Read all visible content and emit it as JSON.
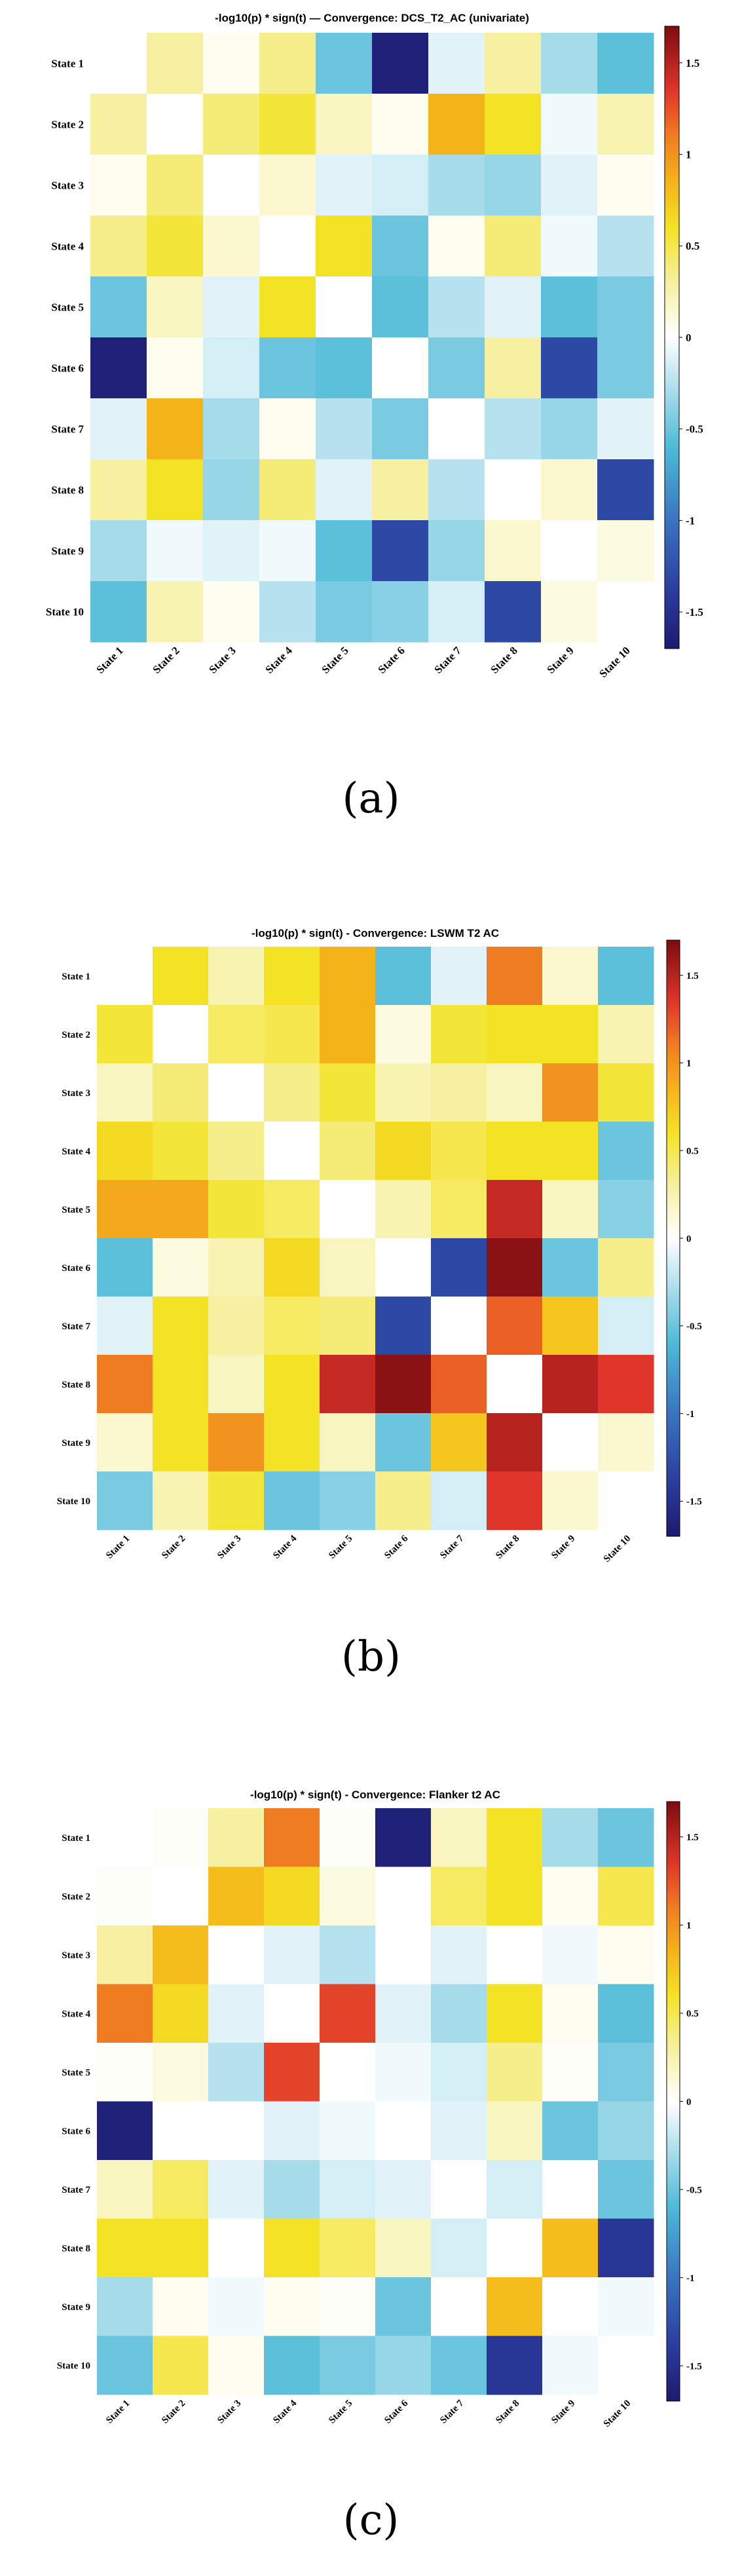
{
  "figure": {
    "captions": [
      "(a)",
      "(b)",
      "(c)"
    ]
  },
  "colormap": {
    "stops": [
      [
        -1.7,
        "#1d1a70"
      ],
      [
        -1.4,
        "#2a3b9c"
      ],
      [
        -1.0,
        "#3a74c0"
      ],
      [
        -0.6,
        "#4dbad8"
      ],
      [
        -0.3,
        "#a6dcea"
      ],
      [
        0.0,
        "#ffffff"
      ],
      [
        0.3,
        "#f6f0a0"
      ],
      [
        0.6,
        "#f4e324"
      ],
      [
        0.85,
        "#f5b31a"
      ],
      [
        1.1,
        "#f07c22"
      ],
      [
        1.35,
        "#e0352a"
      ],
      [
        1.7,
        "#7d0c10"
      ]
    ]
  },
  "chart_data": [
    {
      "type": "heatmap",
      "title": "-log10(p) * sign(t) — Convergence: DCS_T2_AC (univariate)",
      "rows": [
        "State 1",
        "State 2",
        "State 3",
        "State 4",
        "State 5",
        "State 6",
        "State 7",
        "State 8",
        "State 9",
        "State 10"
      ],
      "cols": [
        "State 1",
        "State 2",
        "State 3",
        "State 4",
        "State 5",
        "State 6",
        "State 7",
        "State 8",
        "State 9",
        "State 10"
      ],
      "values": [
        [
          0,
          0.3,
          0.05,
          0.35,
          -0.5,
          -1.65,
          -0.1,
          0.3,
          -0.3,
          -0.55
        ],
        [
          0.3,
          0,
          0.4,
          0.55,
          0.2,
          0.05,
          0.85,
          0.6,
          -0.05,
          0.25
        ],
        [
          0.05,
          0.4,
          0,
          0.15,
          -0.1,
          -0.15,
          -0.3,
          -0.35,
          -0.1,
          0.05
        ],
        [
          0.35,
          0.55,
          0.15,
          0,
          0.6,
          -0.5,
          0.05,
          0.4,
          -0.05,
          -0.25
        ],
        [
          -0.5,
          0.2,
          -0.1,
          0.6,
          0,
          -0.55,
          -0.25,
          -0.1,
          -0.55,
          -0.45
        ],
        [
          -1.65,
          0.05,
          -0.15,
          -0.5,
          -0.55,
          0,
          -0.45,
          0.3,
          -1.3,
          -0.45
        ],
        [
          -0.1,
          0.85,
          -0.3,
          0.05,
          -0.25,
          -0.45,
          0,
          -0.25,
          -0.35,
          -0.1
        ],
        [
          0.3,
          0.6,
          -0.35,
          0.4,
          -0.1,
          0.3,
          -0.25,
          0,
          0.15,
          -1.3
        ],
        [
          -0.3,
          -0.05,
          -0.1,
          -0.05,
          -0.55,
          -1.3,
          -0.35,
          0.15,
          0,
          0.1
        ],
        [
          -0.55,
          0.25,
          0.05,
          -0.25,
          -0.45,
          -0.4,
          -0.15,
          -1.3,
          0.1,
          0
        ]
      ],
      "colorbar": {
        "range": [
          -1.7,
          1.7
        ],
        "ticks": [
          1.5,
          1,
          0.5,
          0,
          -0.5,
          -1,
          -1.5
        ]
      }
    },
    {
      "type": "heatmap",
      "title": "-log10(p) * sign(t) - Convergence: LSWM T2 AC",
      "rows": [
        "State 1",
        "State 2",
        "State 3",
        "State 4",
        "State 5",
        "State 6",
        "State 7",
        "State 8",
        "State 9",
        "State 10"
      ],
      "cols": [
        "State 1",
        "State 2",
        "State 3",
        "State 4",
        "State 5",
        "State 6",
        "State 7",
        "State 8",
        "State 9",
        "State 10"
      ],
      "values": [
        [
          0,
          0.6,
          0.25,
          0.6,
          0.85,
          -0.55,
          -0.1,
          1.1,
          0.15,
          -0.55
        ],
        [
          0.55,
          0,
          0.45,
          0.5,
          0.85,
          0.1,
          0.55,
          0.6,
          0.6,
          0.25
        ],
        [
          0.2,
          0.4,
          0,
          0.35,
          0.55,
          0.25,
          0.3,
          0.2,
          1.0,
          0.55
        ],
        [
          0.65,
          0.55,
          0.35,
          0,
          0.4,
          0.65,
          0.5,
          0.6,
          0.6,
          -0.5
        ],
        [
          0.9,
          0.9,
          0.55,
          0.45,
          0,
          0.25,
          0.45,
          1.45,
          0.2,
          -0.4
        ],
        [
          -0.55,
          0.1,
          0.25,
          0.65,
          0.2,
          0,
          -1.3,
          1.65,
          -0.5,
          0.35
        ],
        [
          -0.1,
          0.6,
          0.3,
          0.45,
          0.4,
          -1.3,
          0,
          1.2,
          0.75,
          -0.15
        ],
        [
          1.1,
          0.6,
          0.2,
          0.6,
          1.45,
          1.65,
          1.2,
          0,
          1.5,
          1.35
        ],
        [
          0.15,
          0.6,
          1.0,
          0.6,
          0.2,
          -0.5,
          0.75,
          1.5,
          0,
          0.15
        ],
        [
          -0.45,
          0.25,
          0.55,
          -0.5,
          -0.4,
          0.35,
          -0.15,
          1.35,
          0.15,
          0
        ]
      ],
      "colorbar": {
        "range": [
          -1.7,
          1.7
        ],
        "ticks": [
          1.5,
          1,
          0.5,
          0,
          -0.5,
          -1,
          -1.5
        ]
      }
    },
    {
      "type": "heatmap",
      "title": "-log10(p) * sign(t) - Convergence: Flanker t2 AC",
      "rows": [
        "State 1",
        "State 2",
        "State 3",
        "State 4",
        "State 5",
        "State 6",
        "State 7",
        "State 8",
        "State 9",
        "State 10"
      ],
      "cols": [
        "State 1",
        "State 2",
        "State 3",
        "State 4",
        "State 5",
        "State 6",
        "State 7",
        "State 8",
        "State 9",
        "State 10"
      ],
      "values": [
        [
          0,
          0.02,
          0.3,
          1.1,
          0.02,
          -1.65,
          0.2,
          0.6,
          -0.3,
          -0.5
        ],
        [
          0.02,
          0,
          0.8,
          0.65,
          0.1,
          0,
          0.45,
          0.6,
          0.05,
          0.5
        ],
        [
          0.3,
          0.8,
          0,
          -0.1,
          -0.25,
          0,
          -0.1,
          0,
          -0.05,
          0.05
        ],
        [
          1.1,
          0.65,
          -0.1,
          0,
          1.3,
          -0.1,
          -0.3,
          0.6,
          0.05,
          -0.55
        ],
        [
          0.02,
          0.1,
          -0.25,
          1.3,
          0,
          -0.05,
          -0.15,
          0.35,
          0.02,
          -0.45
        ],
        [
          -1.65,
          0,
          0,
          -0.1,
          -0.05,
          0,
          -0.1,
          0.2,
          -0.5,
          -0.35
        ],
        [
          0.2,
          0.45,
          -0.1,
          -0.3,
          -0.15,
          -0.1,
          0,
          -0.15,
          0,
          -0.5
        ],
        [
          0.6,
          0.6,
          0,
          0.6,
          0.45,
          0.2,
          -0.15,
          0,
          0.8,
          -1.45
        ],
        [
          -0.3,
          0.05,
          -0.05,
          0.05,
          0.02,
          -0.5,
          0,
          0.8,
          0,
          -0.05
        ],
        [
          -0.5,
          0.5,
          0.05,
          -0.55,
          -0.45,
          -0.35,
          -0.5,
          -1.45,
          -0.05,
          0
        ]
      ],
      "colorbar": {
        "range": [
          -1.7,
          1.7
        ],
        "ticks": [
          1.5,
          1,
          0.5,
          0,
          -0.5,
          -1,
          -1.5
        ]
      }
    }
  ]
}
